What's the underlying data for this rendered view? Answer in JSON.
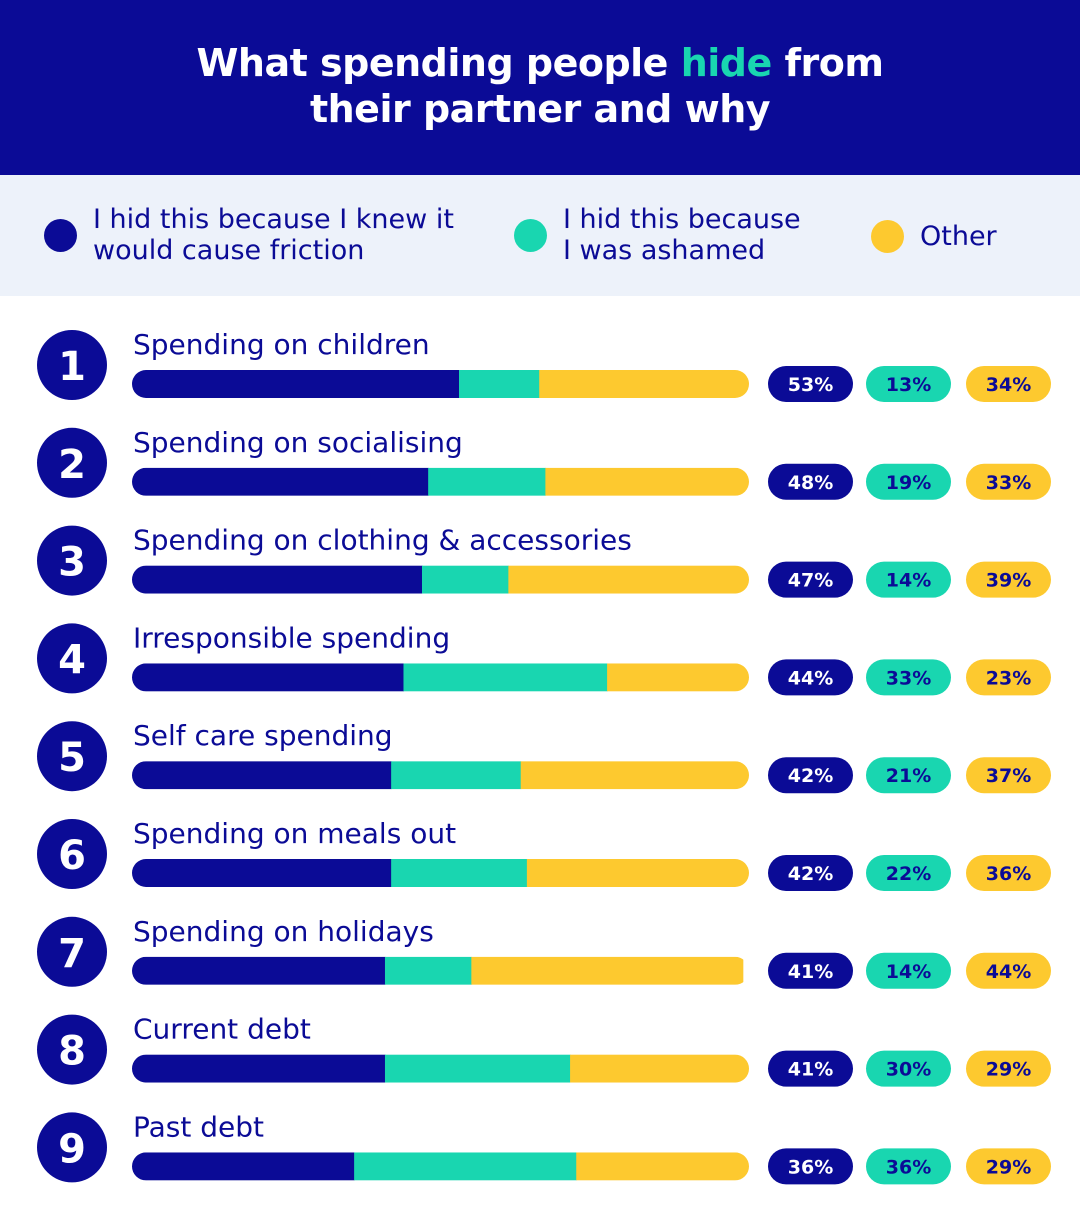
{
  "header": {
    "title_line1_before": "What spending people ",
    "title_highlight": "hide",
    "title_line1_after": " from",
    "title_line2": "their partner and why"
  },
  "legend": {
    "items": [
      {
        "lines": [
          "I hid this because I knew it",
          "would cause friction"
        ],
        "color": "#0b0b96"
      },
      {
        "lines": [
          "I hid this because",
          "I was ashamed"
        ],
        "color": "#19d6b0"
      },
      {
        "lines": [
          "Other"
        ],
        "color": "#fdc92f"
      }
    ]
  },
  "colors": {
    "friction": "#0b0b96",
    "ashamed": "#19d6b0",
    "other": "#fdc92f",
    "text_dark": "#0b0b96",
    "background": "#ffffff"
  },
  "chart_data": {
    "type": "bar",
    "orientation": "horizontal",
    "stacked": true,
    "title": "What spending people hide from their partner and why",
    "categories": [
      "Spending on children",
      "Spending on socialising",
      "Spending on clothing & accessories",
      "Irresponsible spending",
      "Self care spending",
      "Spending on meals out",
      "Spending on holidays",
      "Current debt",
      "Past debt"
    ],
    "ranks": [
      "1",
      "2",
      "3",
      "4",
      "5",
      "6",
      "7",
      "8",
      "9"
    ],
    "series": [
      {
        "name": "I hid this because I knew it would cause friction",
        "color": "#0b0b96",
        "values": [
          53,
          48,
          47,
          44,
          42,
          42,
          41,
          41,
          36
        ]
      },
      {
        "name": "I hid this because I was ashamed",
        "color": "#19d6b0",
        "values": [
          13,
          19,
          14,
          33,
          21,
          22,
          14,
          30,
          36
        ]
      },
      {
        "name": "Other",
        "color": "#fdc92f",
        "values": [
          34,
          33,
          39,
          23,
          37,
          36,
          44,
          29,
          29
        ]
      }
    ],
    "value_suffix": "%",
    "xlim": [
      0,
      100
    ],
    "legend": "top"
  }
}
